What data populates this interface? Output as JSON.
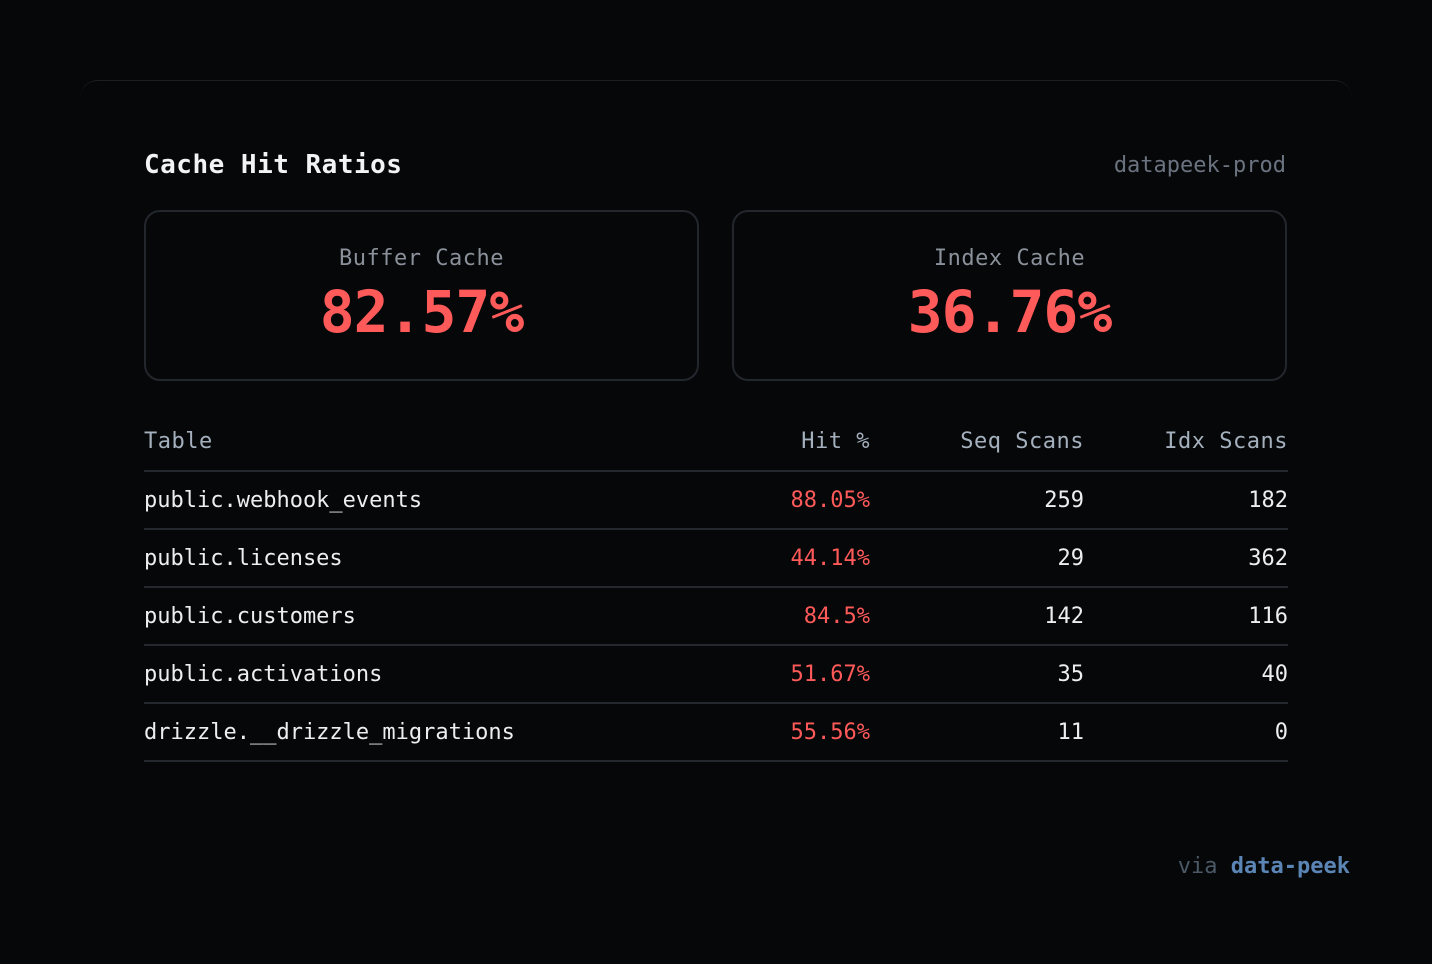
{
  "header": {
    "title": "Cache Hit Ratios",
    "connection": "datapeek-prod"
  },
  "stats": {
    "buffer": {
      "label": "Buffer Cache",
      "value": "82.57%"
    },
    "index": {
      "label": "Index Cache",
      "value": "36.76%"
    }
  },
  "table": {
    "columns": {
      "table": "Table",
      "hit": "Hit %",
      "seq": "Seq Scans",
      "idx": "Idx Scans"
    },
    "rows": [
      {
        "name": "public.webhook_events",
        "hit": "88.05%",
        "seq": "259",
        "idx": "182"
      },
      {
        "name": "public.licenses",
        "hit": "44.14%",
        "seq": "29",
        "idx": "362"
      },
      {
        "name": "public.customers",
        "hit": "84.5%",
        "seq": "142",
        "idx": "116"
      },
      {
        "name": "public.activations",
        "hit": "51.67%",
        "seq": "35",
        "idx": "40"
      },
      {
        "name": "drizzle.__drizzle_migrations",
        "hit": "55.56%",
        "seq": "11",
        "idx": "0"
      }
    ]
  },
  "footer": {
    "via": "via",
    "brand": "data-peek"
  },
  "colors": {
    "background": "#060708",
    "accent_red": "#ff5a5a",
    "brand_blue": "#5b85b5",
    "muted": "#6b7380"
  }
}
